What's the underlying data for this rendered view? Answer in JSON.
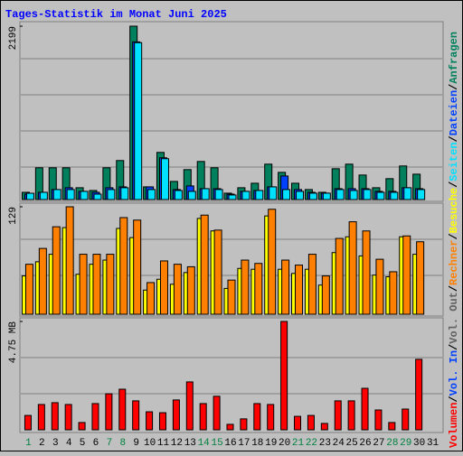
{
  "title": "Tages-Statistik im Monat Juni 2025",
  "legend_separator": "/",
  "chart_data": [
    {
      "type": "bar",
      "ylim": [
        0,
        2199
      ],
      "yticks": [
        2199
      ],
      "series": [
        {
          "name": "Anfragen",
          "color": "#00805c",
          "values": [
            92,
            403,
            403,
            403,
            150,
            115,
            403,
            495,
            2199,
            161,
            598,
            230,
            380,
            483,
            403,
            81,
            150,
            207,
            449,
            345,
            207,
            127,
            92,
            391,
            449,
            311,
            150,
            265,
            426,
            322,
            0
          ]
        },
        {
          "name": "Dateien",
          "color": "#0040ff",
          "values": [
            69,
            92,
            127,
            150,
            104,
            92,
            150,
            161,
            2000,
            161,
            530,
            127,
            173,
            138,
            138,
            69,
            104,
            115,
            161,
            299,
            127,
            92,
            81,
            138,
            138,
            138,
            104,
            104,
            150,
            138,
            0
          ]
        },
        {
          "name": "Seiten",
          "color": "#00e0ff",
          "values": [
            80,
            92,
            127,
            127,
            104,
            69,
            127,
            150,
            1990,
            127,
            518,
            115,
            104,
            138,
            127,
            58,
            104,
            115,
            161,
            127,
            104,
            81,
            81,
            127,
            115,
            127,
            92,
            92,
            150,
            127,
            0
          ]
        }
      ]
    },
    {
      "type": "bar",
      "ylim": [
        0,
        129
      ],
      "yticks": [
        129
      ],
      "series": [
        {
          "name": "Besuche",
          "color": "#ffff00",
          "values": [
            46,
            63,
            72,
            104,
            48,
            60,
            65,
            103,
            92,
            29,
            42,
            36,
            50,
            115,
            100,
            31,
            55,
            54,
            118,
            54,
            49,
            54,
            35,
            74,
            93,
            70,
            47,
            45,
            93,
            72,
            0
          ]
        },
        {
          "name": "Rechner",
          "color": "#ff8000",
          "values": [
            60,
            79,
            105,
            129,
            72,
            72,
            72,
            116,
            113,
            38,
            64,
            60,
            57,
            119,
            101,
            41,
            65,
            61,
            126,
            65,
            59,
            72,
            46,
            91,
            111,
            100,
            66,
            51,
            94,
            87,
            0
          ]
        }
      ]
    },
    {
      "type": "bar",
      "ylim": [
        0,
        4.75
      ],
      "yticks": [
        {
          "value": 4.75,
          "label": "4.75 MB"
        }
      ],
      "categories": [
        "1",
        "2",
        "3",
        "4",
        "5",
        "6",
        "7",
        "8",
        "9",
        "10",
        "11",
        "12",
        "13",
        "14",
        "15",
        "16",
        "17",
        "18",
        "19",
        "20",
        "21",
        "22",
        "23",
        "24",
        "25",
        "26",
        "27",
        "28",
        "29",
        "30",
        "31"
      ],
      "category_colors": [
        "#008040",
        "#000000",
        "#000000",
        "#000000",
        "#000000",
        "#000000",
        "#008040",
        "#008040",
        "#000000",
        "#000000",
        "#000000",
        "#000000",
        "#000000",
        "#008040",
        "#008040",
        "#000000",
        "#000000",
        "#000000",
        "#000000",
        "#000000",
        "#008040",
        "#008040",
        "#000000",
        "#000000",
        "#000000",
        "#000000",
        "#000000",
        "#008040",
        "#008040",
        "#000000",
        "#000000"
      ],
      "series": [
        {
          "name": "Vol. Out",
          "color": "#606060"
        },
        {
          "name": "Vol. In",
          "color": "#0040ff"
        },
        {
          "name": "Volumen",
          "color": "#ff0000",
          "values": [
            0.63,
            1.11,
            1.19,
            1.11,
            0.32,
            1.15,
            1.58,
            1.78,
            1.27,
            0.79,
            0.75,
            1.31,
            2.1,
            1.15,
            1.47,
            0.24,
            0.48,
            1.15,
            1.11,
            4.75,
            0.59,
            0.63,
            0.28,
            1.27,
            1.27,
            1.82,
            0.87,
            0.32,
            0.91,
            3.09,
            0
          ]
        }
      ]
    }
  ]
}
